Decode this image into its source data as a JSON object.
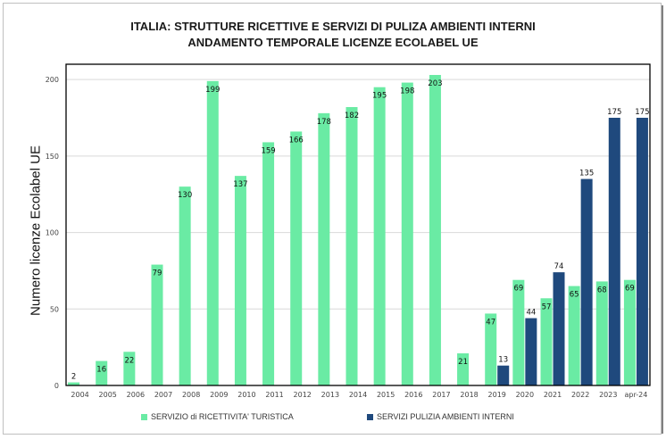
{
  "chart_data": {
    "type": "bar",
    "title": [
      "ITALIA:  STRUTTURE RICETTIVE E SERVIZI DI PULIZA AMBIENTI INTERNI",
      "ANDAMENTO TEMPORALE LICENZE ECOLABEL UE"
    ],
    "xlabel": "",
    "ylabel": "Numero licenze Ecolabel UE",
    "ylim": [
      0,
      210
    ],
    "yticks": [
      0,
      50,
      100,
      150,
      200
    ],
    "grid": true,
    "legend_position": "bottom",
    "categories": [
      "2004",
      "2005",
      "2006",
      "2007",
      "2008",
      "2009",
      "2010",
      "2011",
      "2012",
      "2013",
      "2014",
      "2015",
      "2016",
      "2017",
      "2018",
      "2019",
      "2020",
      "2021",
      "2022",
      "2023",
      "apr-24"
    ],
    "series": [
      {
        "name": "SERVIZIO di RICETTIVITA' TURISTICA",
        "color": "#6aeba4",
        "values": [
          2,
          16,
          22,
          79,
          130,
          199,
          137,
          159,
          166,
          178,
          182,
          195,
          198,
          203,
          21,
          47,
          69,
          57,
          65,
          68,
          69
        ]
      },
      {
        "name": "SERVIZI PULIZIA AMBIENTI INTERNI",
        "color": "#1f497d",
        "values": [
          null,
          null,
          null,
          null,
          null,
          null,
          null,
          null,
          null,
          null,
          null,
          null,
          null,
          null,
          null,
          13,
          44,
          74,
          135,
          175,
          175
        ]
      }
    ]
  }
}
